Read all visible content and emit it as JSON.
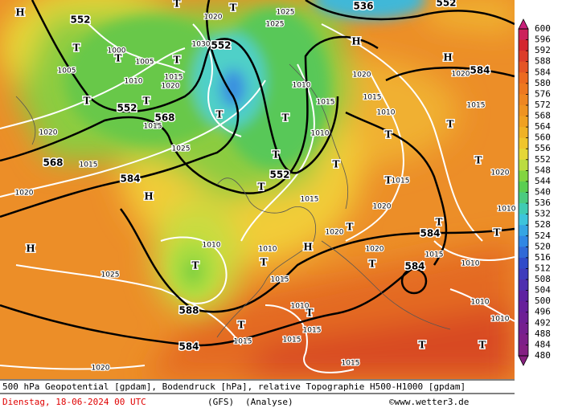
{
  "legend": {
    "labels": [
      600,
      596,
      592,
      588,
      584,
      580,
      576,
      572,
      568,
      564,
      560,
      556,
      552,
      548,
      544,
      540,
      536,
      532,
      528,
      524,
      520,
      516,
      512,
      508,
      504,
      500,
      496,
      492,
      488,
      484,
      480
    ]
  },
  "map": {
    "contour_labels": [
      "552",
      "552",
      "552",
      "568",
      "568",
      "584",
      "552",
      "584",
      "584",
      "584",
      "588",
      "584",
      "536",
      "552"
    ],
    "pressure_centers": [
      "H",
      "T",
      "T",
      "T",
      "T",
      "T",
      "T",
      "T",
      "T",
      "T",
      "H",
      "H",
      "T",
      "T",
      "H",
      "T",
      "T",
      "T",
      "T",
      "T",
      "T",
      "T",
      "T",
      "T",
      "T",
      "T",
      "T",
      "T",
      "H",
      "H",
      "T",
      "T"
    ],
    "isobar_labels": [
      "1020",
      "1025",
      "1025",
      "1000",
      "1005",
      "1005",
      "1010",
      "1015",
      "1020",
      "1030",
      "1015",
      "1025",
      "1020",
      "1015",
      "1020",
      "1010",
      "1020",
      "1015",
      "1010",
      "1010",
      "1015",
      "1020",
      "1015",
      "1020",
      "1010",
      "1010",
      "1020",
      "1015",
      "1025",
      "1015",
      "1010",
      "1010",
      "1010",
      "1010",
      "1015",
      "1015",
      "1015",
      "1020",
      "1015",
      "1020",
      "1015",
      "1020",
      "1010",
      "1015"
    ]
  },
  "footer": {
    "description": "500 hPa Geopotential [gpdam], Bodendruck [hPa], relative Topographie H500-H1000 [gpdam]",
    "date": "Dienstag, 18-06-2024  00 UTC",
    "model": "(GFS)",
    "mode": "(Analyse)",
    "site": "©www.wetter3.de"
  }
}
